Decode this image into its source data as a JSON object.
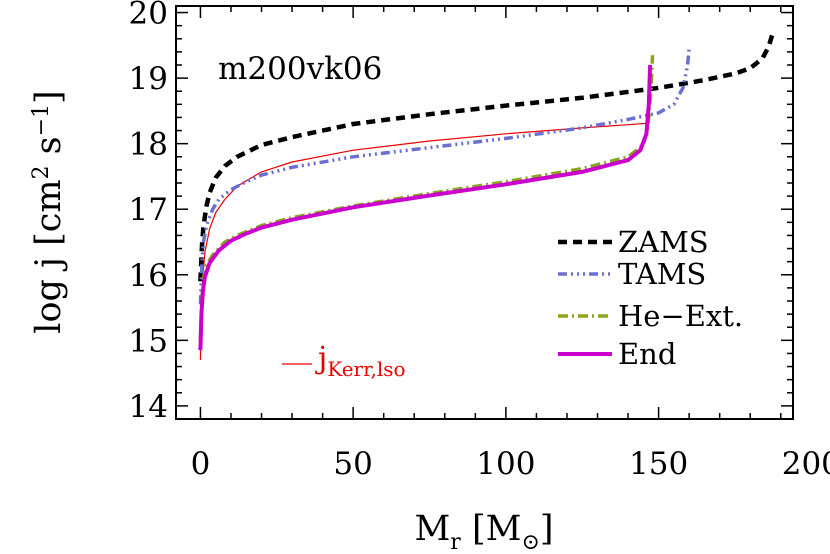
{
  "chart_data": {
    "type": "line",
    "title": "",
    "model_label": "m200vk06",
    "xlabel": {
      "main": "M",
      "sub": "r",
      "unit_open": " [M",
      "unit_symbol": "⊙",
      "unit_close": "]"
    },
    "ylabel": {
      "main": "log j [cm",
      "sup1": "2",
      "mid": " s",
      "sup2": "−1",
      "close": "]"
    },
    "xlim": [
      -8,
      194
    ],
    "ylim": [
      13.8,
      20.1
    ],
    "x_ticks": [
      0,
      50,
      100,
      150,
      200
    ],
    "x_tick_labels": [
      "0",
      "50",
      "100",
      "150",
      "200"
    ],
    "y_ticks": [
      14,
      15,
      16,
      17,
      18,
      19,
      20
    ],
    "y_tick_labels": [
      "14",
      "15",
      "16",
      "17",
      "18",
      "19",
      "20"
    ],
    "grid": false,
    "legend_position": "right",
    "series": [
      {
        "name": "ZAMS",
        "color": "#000000",
        "dash": "9,6",
        "width": 4.5,
        "x": [
          0,
          0.5,
          1,
          2,
          3,
          5,
          8,
          12,
          20,
          30,
          50,
          75,
          100,
          125,
          150,
          165,
          175,
          180,
          184,
          186,
          187.5
        ],
        "y": [
          15.9,
          16.45,
          16.75,
          17.05,
          17.25,
          17.48,
          17.66,
          17.8,
          17.98,
          18.1,
          18.3,
          18.45,
          18.58,
          18.7,
          18.85,
          18.97,
          19.07,
          19.15,
          19.3,
          19.48,
          19.7
        ]
      },
      {
        "name": "TAMS",
        "color": "#6a6fd0",
        "dash": "9,4,2,4,2,4,2,4",
        "width": 3.5,
        "x": [
          0,
          0.5,
          1,
          2,
          4,
          6,
          10,
          15,
          20,
          30,
          50,
          75,
          100,
          125,
          140,
          150,
          155,
          158,
          159.5,
          160
        ],
        "y": [
          15.55,
          16.2,
          16.5,
          16.75,
          17.0,
          17.15,
          17.3,
          17.42,
          17.52,
          17.64,
          17.8,
          17.94,
          18.08,
          18.24,
          18.37,
          18.47,
          18.6,
          18.85,
          19.2,
          19.45
        ]
      },
      {
        "name": "He−Ext.",
        "color": "#8aa51e",
        "dash": "10,4,2,4",
        "width": 3.5,
        "x": [
          0,
          0.5,
          1,
          2,
          4,
          8,
          12,
          20,
          30,
          50,
          75,
          100,
          125,
          140,
          145,
          146.5,
          147.5,
          148
        ],
        "y": [
          15.0,
          15.65,
          15.95,
          16.15,
          16.3,
          16.5,
          16.6,
          16.75,
          16.87,
          17.05,
          17.24,
          17.42,
          17.62,
          17.8,
          17.98,
          18.25,
          18.8,
          19.35
        ]
      },
      {
        "name": "End",
        "color": "#cc00cc",
        "dash": "",
        "width": 4,
        "x": [
          0,
          0.3,
          0.8,
          1.5,
          3,
          6,
          10,
          15,
          20,
          30,
          50,
          75,
          100,
          125,
          140,
          144,
          146,
          146.8,
          147.2
        ],
        "y": [
          14.85,
          15.4,
          15.75,
          15.97,
          16.18,
          16.37,
          16.52,
          16.63,
          16.72,
          16.84,
          17.03,
          17.21,
          17.38,
          17.57,
          17.75,
          17.9,
          18.15,
          18.6,
          19.2
        ]
      },
      {
        "name": "j_Kerr,lso",
        "color": "#ee0000",
        "dash": "",
        "width": 1.2,
        "x": [
          0,
          0.3,
          0.8,
          1.5,
          3,
          5,
          8,
          12,
          20,
          30,
          50,
          75,
          100,
          125,
          140,
          146
        ],
        "y": [
          14.7,
          15.5,
          16.0,
          16.35,
          16.7,
          16.95,
          17.15,
          17.35,
          17.57,
          17.72,
          17.9,
          18.04,
          18.15,
          18.24,
          18.29,
          18.31
        ]
      }
    ],
    "legend_main": [
      "ZAMS",
      "TAMS",
      "He−Ext.",
      "End"
    ],
    "legend_kerr": {
      "main": "j",
      "sub": "Kerr,lso"
    }
  }
}
